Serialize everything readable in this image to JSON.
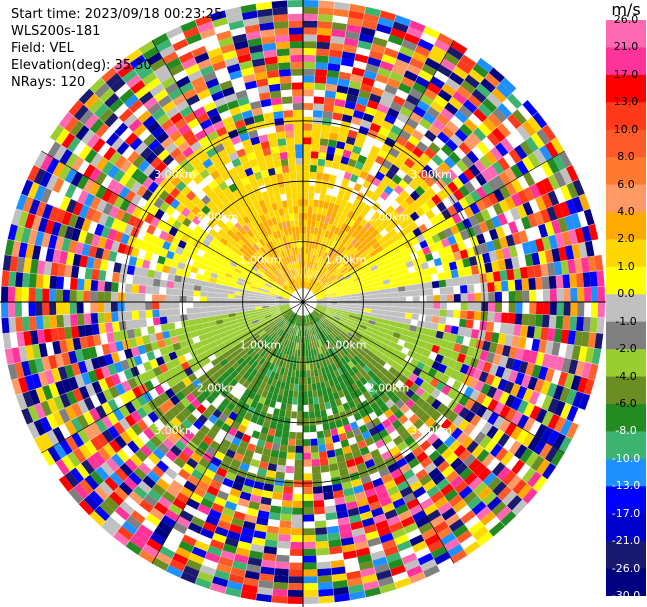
{
  "header": {
    "start_time": "Start time: 2023/09/18 00:23:25",
    "site": "WLS200s-181",
    "field": "Field: VEL",
    "elevation": "Elevation(deg): 35.30",
    "nrays": "NRays: 120"
  },
  "chart_data": {
    "type": "ppi",
    "field": "VEL",
    "units": "m/s",
    "elevation_deg": 35.3,
    "n_rays": 120,
    "range_rings_km": [
      1.0,
      2.0,
      3.0
    ],
    "ring_labels": [
      "1.00km",
      "2.00km",
      "3.00km"
    ],
    "max_range_km": 5.0,
    "spoke_step_deg": 30,
    "colorbar": {
      "title": "m/s",
      "ticks": [
        "26.0",
        "21.0",
        "17.0",
        "13.0",
        "10.0",
        "8.0",
        "6.0",
        "4.0",
        "2.0",
        "1.0",
        "0.0",
        "-1.0",
        "-2.0",
        "-4.0",
        "-6.0",
        "-8.0",
        "-10.0",
        "-13.0",
        "-17.0",
        "-21.0",
        "-26.0",
        "-30.0"
      ],
      "colors": [
        "#ff69b4",
        "#ff3399",
        "#ff0000",
        "#ff3a1a",
        "#ff5a2a",
        "#ff7a30",
        "#ff9966",
        "#ffaa00",
        "#ffd700",
        "#ffff00",
        "#c0c0c0",
        "#808080",
        "#9acd32",
        "#6b8e23",
        "#228b22",
        "#3cb371",
        "#1e90ff",
        "#0000ff",
        "#0000cd",
        "#191970",
        "#000080"
      ]
    },
    "wind": {
      "description_free": true,
      "mean_direction_deg": 0,
      "mean_speed_ms": 2.0
    }
  }
}
